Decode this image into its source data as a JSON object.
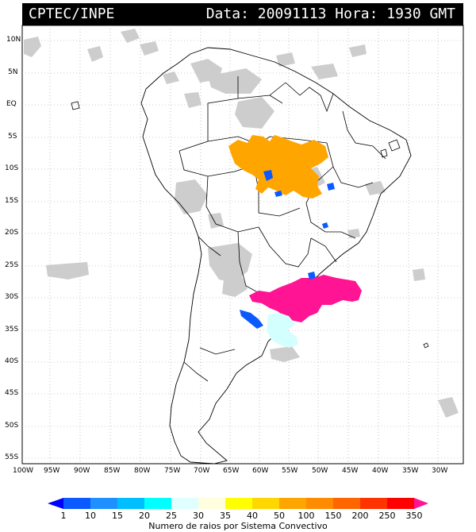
{
  "header": {
    "source": "CPTEC/INPE",
    "date_label": "Data: 20091113",
    "time_label": "Hora: 1930 GMT"
  },
  "axes": {
    "lat_labels": [
      "10N",
      "5N",
      "EQ",
      "5S",
      "10S",
      "15S",
      "20S",
      "25S",
      "30S",
      "35S",
      "40S",
      "45S",
      "50S",
      "55S"
    ],
    "lon_labels": [
      "100W",
      "95W",
      "90W",
      "85W",
      "80W",
      "75W",
      "70W",
      "65W",
      "60W",
      "55W",
      "50W",
      "45W",
      "40W",
      "35W",
      "30W"
    ]
  },
  "legend": {
    "title": "Numero de raios por Sistema Convectivo",
    "ticks": [
      "1",
      "10",
      "15",
      "20",
      "25",
      "30",
      "35",
      "40",
      "50",
      "100",
      "150",
      "200",
      "250",
      "350"
    ],
    "colors": [
      "#0000ff",
      "#0a5aff",
      "#1e90ff",
      "#00bfff",
      "#00ffff",
      "#e0ffff",
      "#ffffe0",
      "#ffff00",
      "#ffd700",
      "#ffa500",
      "#ff8c00",
      "#ff6600",
      "#ff3300",
      "#ff0000",
      "#ff1493"
    ]
  },
  "colors": {
    "cloud": "#c8c8c8",
    "orange_system": "#ffa500",
    "pink_system": "#ff1493",
    "blue_system": "#0a5aff",
    "cyan_system": "#d4ffff",
    "border": "#000000"
  }
}
